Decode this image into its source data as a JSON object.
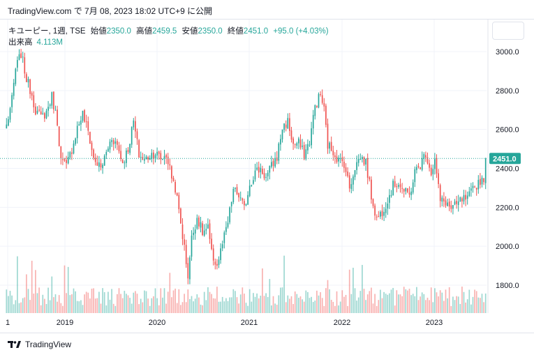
{
  "header": {
    "publish_line": "TradingView.com で 7月 08, 2023 18:02 UTC+9 に公開"
  },
  "legend": {
    "symbol": "キユーピー, 1週, TSE",
    "open_label": "始値",
    "open": "2350.0",
    "high_label": "高値",
    "high": "2459.5",
    "low_label": "安値",
    "low": "2350.0",
    "close_label": "終値",
    "close": "2451.0",
    "change": "+95.0 (+4.03%)",
    "volume_label": "出来高",
    "volume": "4.113M"
  },
  "footer": {
    "brand": "TradingView"
  },
  "colors": {
    "up": "#26a69a",
    "down": "#ef5350",
    "grid": "#f0f3fa",
    "axis_text": "#131722",
    "price_line": "#26a69a"
  },
  "chart_data": {
    "type": "candlestick",
    "ylim": [
      1650,
      3080
    ],
    "y_ticks": [
      "1800.0",
      "2000.0",
      "2200.0",
      "2400.0",
      "2600.0",
      "2800.0",
      "3000.0"
    ],
    "x_ticks": [
      "1",
      "2019",
      "2020",
      "2021",
      "2022",
      "2023"
    ],
    "last_price_label": "2451.0",
    "last_price": 2451,
    "weeks_total": 265,
    "anchors": [
      [
        0,
        2620
      ],
      [
        3,
        2750
      ],
      [
        5,
        2910
      ],
      [
        8,
        2990
      ],
      [
        11,
        2860
      ],
      [
        14,
        2780
      ],
      [
        16,
        2700
      ],
      [
        19,
        2660
      ],
      [
        22,
        2690
      ],
      [
        25,
        2770
      ],
      [
        28,
        2640
      ],
      [
        30,
        2440
      ],
      [
        33,
        2410
      ],
      [
        36,
        2500
      ],
      [
        39,
        2610
      ],
      [
        42,
        2680
      ],
      [
        45,
        2590
      ],
      [
        48,
        2450
      ],
      [
        52,
        2400
      ],
      [
        55,
        2480
      ],
      [
        58,
        2560
      ],
      [
        61,
        2520
      ],
      [
        64,
        2430
      ],
      [
        67,
        2500
      ],
      [
        70,
        2640
      ],
      [
        73,
        2470
      ],
      [
        76,
        2440
      ],
      [
        79,
        2470
      ],
      [
        82,
        2480
      ],
      [
        85,
        2450
      ],
      [
        88,
        2470
      ],
      [
        91,
        2360
      ],
      [
        93,
        2300
      ],
      [
        96,
        2120
      ],
      [
        98,
        1990
      ],
      [
        100,
        1850
      ],
      [
        102,
        2040
      ],
      [
        105,
        2150
      ],
      [
        108,
        2070
      ],
      [
        111,
        2090
      ],
      [
        113,
        1960
      ],
      [
        116,
        1900
      ],
      [
        119,
        2010
      ],
      [
        122,
        2120
      ],
      [
        125,
        2290
      ],
      [
        128,
        2260
      ],
      [
        131,
        2190
      ],
      [
        134,
        2320
      ],
      [
        137,
        2380
      ],
      [
        140,
        2400
      ],
      [
        143,
        2350
      ],
      [
        146,
        2410
      ],
      [
        149,
        2460
      ],
      [
        152,
        2610
      ],
      [
        155,
        2640
      ],
      [
        158,
        2520
      ],
      [
        161,
        2530
      ],
      [
        164,
        2470
      ],
      [
        167,
        2540
      ],
      [
        170,
        2720
      ],
      [
        173,
        2780
      ],
      [
        175,
        2700
      ],
      [
        177,
        2520
      ],
      [
        180,
        2490
      ],
      [
        183,
        2440
      ],
      [
        186,
        2430
      ],
      [
        189,
        2300
      ],
      [
        192,
        2410
      ],
      [
        195,
        2460
      ],
      [
        198,
        2430
      ],
      [
        201,
        2260
      ],
      [
        204,
        2140
      ],
      [
        207,
        2180
      ],
      [
        210,
        2240
      ],
      [
        213,
        2310
      ],
      [
        216,
        2330
      ],
      [
        219,
        2280
      ],
      [
        222,
        2260
      ],
      [
        225,
        2380
      ],
      [
        228,
        2420
      ],
      [
        231,
        2480
      ],
      [
        234,
        2380
      ],
      [
        236,
        2440
      ],
      [
        239,
        2230
      ],
      [
        242,
        2230
      ],
      [
        245,
        2190
      ],
      [
        248,
        2210
      ],
      [
        251,
        2240
      ],
      [
        254,
        2240
      ],
      [
        257,
        2290
      ],
      [
        260,
        2330
      ],
      [
        263,
        2355
      ],
      [
        264,
        2451
      ]
    ]
  }
}
